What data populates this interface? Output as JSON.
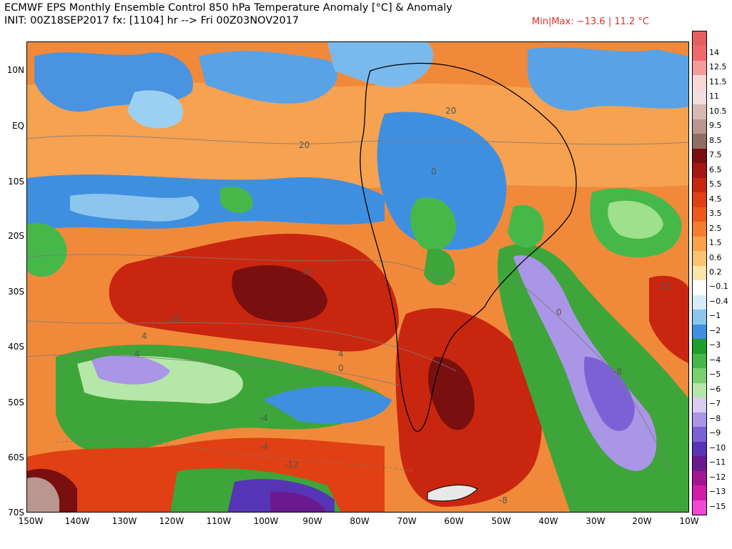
{
  "header": {
    "title": "ECMWF EPS Monthly Ensemble Control 850 hPa Temperature Anomaly [°C] & Anomaly",
    "subtitle": "INIT: 00Z18SEP2017 fx: [1104] hr --> Fri 00Z03NOV2017",
    "minmax": "Min|Max: −13.6 | 11.2 °C"
  },
  "map": {
    "lat_labels": [
      "10N",
      "EQ",
      "10S",
      "20S",
      "30S",
      "40S",
      "50S",
      "60S",
      "70S"
    ],
    "lon_labels": [
      "150W",
      "140W",
      "130W",
      "120W",
      "110W",
      "100W",
      "90W",
      "80W",
      "70W",
      "60W",
      "50W",
      "40W",
      "30W",
      "20W",
      "10W"
    ],
    "contour_labels": [
      "20",
      "20",
      "0",
      "12",
      "12",
      "4",
      "4",
      "4",
      "0",
      "-4",
      "-4",
      "-12",
      "0",
      "12",
      "-8",
      "-8"
    ]
  },
  "colorbar": {
    "labels": [
      "14",
      "12.5",
      "11.5",
      "11",
      "10.5",
      "9.5",
      "8.5",
      "7.5",
      "6.5",
      "5.5",
      "4.5",
      "3.5",
      "2.5",
      "1.5",
      "0.6",
      "0.2",
      "−0.1",
      "−0.4",
      "−1",
      "−2",
      "−3",
      "−4",
      "−5",
      "−6",
      "−7",
      "−8",
      "−9",
      "−10",
      "−11",
      "−12",
      "−13",
      "−15"
    ],
    "colors": [
      "#f06a6a",
      "#f49c9c",
      "#fbd8d8",
      "#f2dede",
      "#d6b9b5",
      "#b9968f",
      "#8f6e64",
      "#7a0f0f",
      "#a31612",
      "#c9260f",
      "#e04014",
      "#ee5a1c",
      "#f57e2e",
      "#f9a24a",
      "#fbc270",
      "#fde4a8",
      "#ffffff",
      "#d6ecf8",
      "#8cc6ec",
      "#3f8fe0",
      "#1e9e2c",
      "#46b84a",
      "#78d16e",
      "#b5e7a8",
      "#d8ccf2",
      "#a996e6",
      "#7a62d6",
      "#5535b5",
      "#6a1a8e",
      "#a3168f",
      "#d11ea8",
      "#f04ad4"
    ]
  }
}
